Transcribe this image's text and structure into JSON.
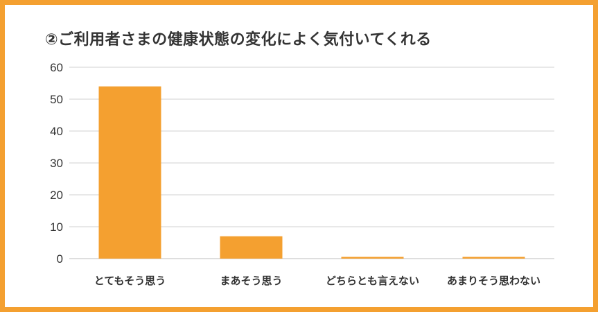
{
  "chart_data": {
    "type": "bar",
    "title": "②ご利用者さまの健康状態の変化によく気付いてくれる",
    "xlabel": "",
    "ylabel": "",
    "categories": [
      "とてもそう思う",
      "まあそう思う",
      "どちらとも言えない",
      "あまりそう思わない"
    ],
    "values": [
      54,
      7,
      0.4,
      0.4
    ],
    "ylim": [
      0,
      60
    ],
    "yticks": [
      "0",
      "10",
      "20",
      "30",
      "40",
      "50",
      "60"
    ],
    "grid": true,
    "bar_color": "#f4a030",
    "frame_color": "#f4a030",
    "grid_color": "#d0d0d0"
  }
}
